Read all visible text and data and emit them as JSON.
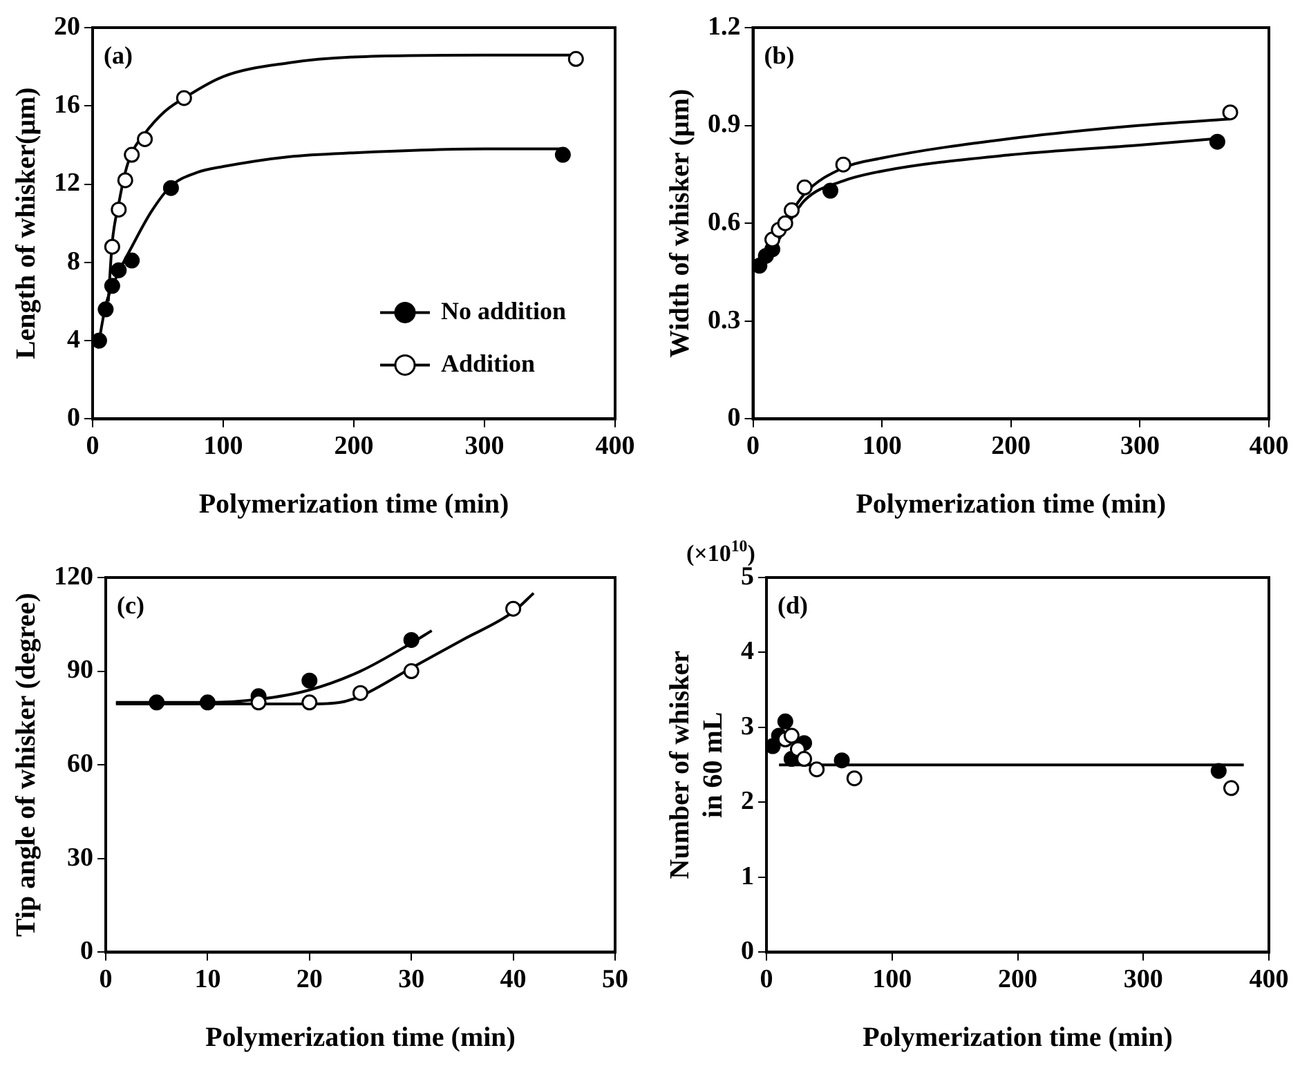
{
  "chart_data": [
    {
      "type": "scatter",
      "xlabel": "Polymerization time (min)",
      "ylabel": "Length of whisker(μm)",
      "annotations": [
        "(a)"
      ],
      "xlim": [
        0,
        400
      ],
      "xticks": [
        0,
        100,
        200,
        300,
        400
      ],
      "ylim": [
        0,
        20
      ],
      "yticks": [
        0,
        4,
        8,
        12,
        16,
        20
      ],
      "legend": "bottom right",
      "marker": "circle",
      "series": [
        {
          "name": "No addition",
          "color": "#000000",
          "x": [
            5,
            10,
            15,
            20,
            30,
            60,
            360
          ],
          "values": [
            4.0,
            5.6,
            6.8,
            7.6,
            8.1,
            11.8,
            13.5
          ]
        },
        {
          "name": "Addition",
          "color": "#ffffff",
          "x": [
            15,
            20,
            25,
            30,
            40,
            70,
            370
          ],
          "values": [
            8.8,
            10.7,
            12.2,
            13.5,
            14.3,
            16.4,
            18.4
          ]
        },
        {
          "type": "line",
          "marker": "none",
          "color": "#000000",
          "x": [
            4,
            10,
            20,
            30,
            45,
            60,
            80,
            100,
            150,
            200,
            300,
            360
          ],
          "values": [
            3.6,
            5.8,
            7.5,
            8.8,
            10.6,
            11.9,
            12.6,
            12.9,
            13.4,
            13.6,
            13.8,
            13.8
          ]
        },
        {
          "type": "line",
          "marker": "none",
          "color": "#000000",
          "x": [
            12,
            15,
            20,
            25,
            30,
            40,
            55,
            70,
            100,
            150,
            200,
            300,
            370
          ],
          "values": [
            6.0,
            9.0,
            11.0,
            12.6,
            13.6,
            14.6,
            15.7,
            16.4,
            17.5,
            18.2,
            18.5,
            18.6,
            18.6
          ]
        }
      ]
    },
    {
      "type": "scatter",
      "xlabel": "Polymerization time (min)",
      "ylabel": "Width of whisker (μm)",
      "annotations": [
        "(b)"
      ],
      "xlim": [
        0,
        400
      ],
      "xticks": [
        0,
        100,
        200,
        300,
        400
      ],
      "ylim": [
        0,
        1.2
      ],
      "yticks": [
        0,
        0.3,
        0.6,
        0.9,
        1.2
      ],
      "marker": "circle",
      "series": [
        {
          "color": "#000000",
          "x": [
            5,
            10,
            15,
            60,
            360
          ],
          "values": [
            0.47,
            0.5,
            0.52,
            0.7,
            0.85
          ]
        },
        {
          "color": "#ffffff",
          "x": [
            15,
            20,
            25,
            30,
            40,
            70,
            370
          ],
          "values": [
            0.55,
            0.58,
            0.6,
            0.64,
            0.71,
            0.78,
            0.94
          ]
        },
        {
          "type": "line",
          "marker": "none",
          "color": "#000000",
          "x": [
            5,
            20,
            40,
            70,
            100,
            200,
            300,
            360
          ],
          "values": [
            0.46,
            0.55,
            0.67,
            0.73,
            0.76,
            0.81,
            0.84,
            0.86
          ]
        },
        {
          "type": "line",
          "marker": "none",
          "color": "#000000",
          "x": [
            5,
            20,
            40,
            70,
            100,
            200,
            300,
            370
          ],
          "values": [
            0.47,
            0.57,
            0.69,
            0.77,
            0.8,
            0.86,
            0.9,
            0.92
          ]
        }
      ]
    },
    {
      "type": "scatter",
      "xlabel": "Polymerization time (min)",
      "ylabel": "Tip angle of whisker (degree)",
      "annotations": [
        "(c)"
      ],
      "xlim": [
        0,
        50
      ],
      "xticks": [
        0,
        10,
        20,
        30,
        40,
        50
      ],
      "ylim": [
        0,
        120
      ],
      "yticks": [
        0,
        30,
        60,
        90,
        120
      ],
      "marker": "circle",
      "series": [
        {
          "color": "#000000",
          "x": [
            5,
            10,
            15,
            20,
            30
          ],
          "values": [
            80,
            80,
            82,
            87,
            100
          ]
        },
        {
          "color": "#ffffff",
          "x": [
            15,
            20,
            25,
            30,
            40
          ],
          "values": [
            80,
            80,
            83,
            90,
            110
          ]
        },
        {
          "type": "line",
          "marker": "none",
          "color": "#000000",
          "x": [
            1,
            10,
            15,
            20,
            25,
            30,
            32
          ],
          "values": [
            80,
            80,
            81,
            84,
            90,
            99,
            103
          ]
        },
        {
          "type": "line",
          "marker": "none",
          "color": "#000000",
          "x": [
            1,
            20,
            23,
            25,
            30,
            35,
            40,
            42
          ],
          "values": [
            79.5,
            79.5,
            80,
            82,
            91,
            100,
            109,
            115
          ]
        }
      ]
    },
    {
      "type": "scatter",
      "xlabel": "Polymerization time (min)",
      "ylabel": "Number of whisker\nin 60 mL",
      "annotations": [
        "(d)",
        "(×10$^{10}$)"
      ],
      "xlim": [
        0,
        400
      ],
      "xticks": [
        0,
        100,
        200,
        300,
        400
      ],
      "ylim": [
        0,
        5
      ],
      "yticks": [
        0,
        1,
        2,
        3,
        4,
        5
      ],
      "marker": "circle",
      "series": [
        {
          "color": "#000000",
          "x": [
            5,
            10,
            15,
            20,
            30,
            60,
            360
          ],
          "values": [
            2.75,
            2.89,
            3.08,
            2.58,
            2.79,
            2.56,
            2.42
          ]
        },
        {
          "color": "#ffffff",
          "x": [
            15,
            20,
            25,
            30,
            40,
            70,
            370
          ],
          "values": [
            2.84,
            2.89,
            2.71,
            2.58,
            2.44,
            2.32,
            2.19
          ]
        },
        {
          "type": "line",
          "marker": "none",
          "color": "#000000",
          "x": [
            10,
            380
          ],
          "values": [
            2.5,
            2.5
          ]
        }
      ]
    }
  ]
}
